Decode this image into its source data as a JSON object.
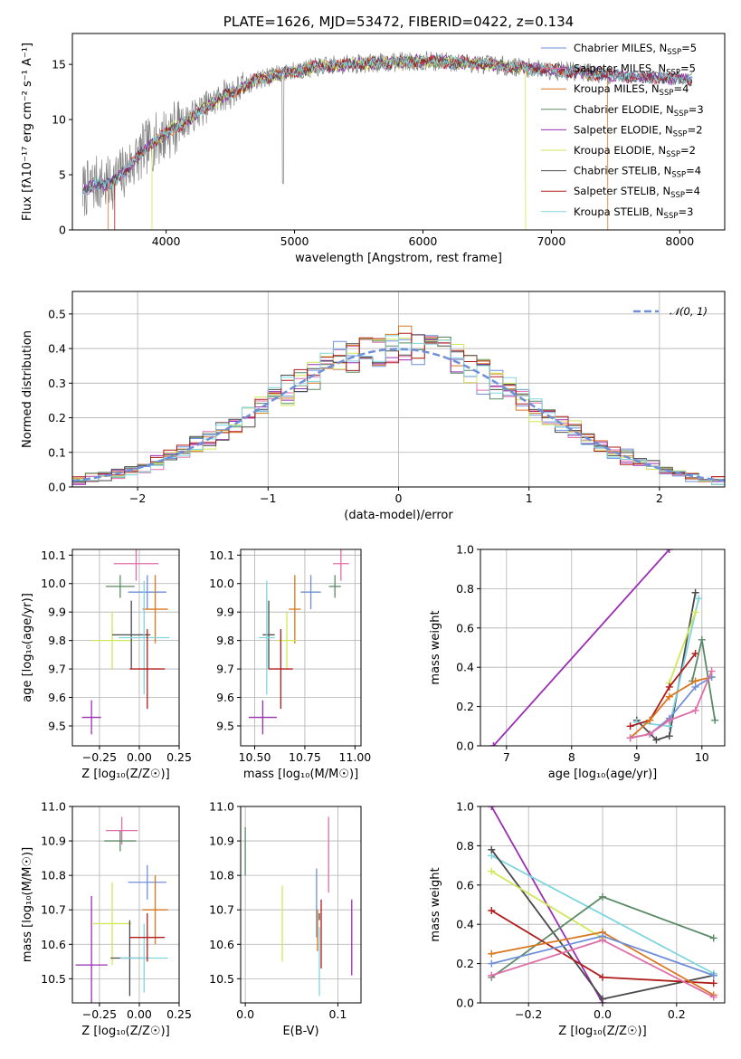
{
  "colors": {
    "Chabrier MILES": "#6f8fd8",
    "Salpeter MILES": "#e06ea8",
    "Kroupa MILES": "#d9771f",
    "Chabrier ELODIE": "#5b8a66",
    "Salpeter ELODIE": "#9a2fb3",
    "Kroupa ELODIE": "#cfe85a",
    "Chabrier STELIB": "#4a4a4a",
    "Salpeter STELIB": "#b01b1b",
    "Kroupa STELIB": "#7fd5de",
    "data": "#808080"
  },
  "chart_data": [
    {
      "id": "spectrum",
      "type": "line",
      "title": "PLATE=1626, MJD=53472, FIBERID=0422, z=0.134",
      "xlabel": "wavelength [Angstrom, rest frame]",
      "ylabel": "Flux [fλ10⁻¹⁷ erg cm⁻² s⁻¹ A⁻¹]",
      "xlim": [
        3270,
        8350
      ],
      "ylim": [
        0,
        17.8
      ],
      "xticks": [
        4000,
        5000,
        6000,
        7000,
        8000
      ],
      "yticks": [
        0,
        5,
        10,
        15
      ],
      "grid": false,
      "legend_position": "upper-right",
      "legend": [
        {
          "label": "Chabrier MILES, N",
          "sub": "SSP",
          "suffix": "=5"
        },
        {
          "label": "Salpeter MILES, N",
          "sub": "SSP",
          "suffix": "=5"
        },
        {
          "label": "Kroupa MILES, N",
          "sub": "SSP",
          "suffix": "=4"
        },
        {
          "label": "Chabrier ELODIE, N",
          "sub": "SSP",
          "suffix": "=3"
        },
        {
          "label": "Salpeter ELODIE, N",
          "sub": "SSP",
          "suffix": "=2"
        },
        {
          "label": "Kroupa ELODIE, N",
          "sub": "SSP",
          "suffix": "=2"
        },
        {
          "label": "Chabrier STELIB, N",
          "sub": "SSP",
          "suffix": "=4"
        },
        {
          "label": "Salpeter STELIB, N",
          "sub": "SSP",
          "suffix": "=4"
        },
        {
          "label": "Kroupa STELIB, N",
          "sub": "SSP",
          "suffix": "=3"
        }
      ],
      "continuum": {
        "x": [
          3350,
          3450,
          3550,
          3650,
          3750,
          3850,
          3950,
          4050,
          4150,
          4250,
          4350,
          4450,
          4550,
          4700,
          4850,
          5000,
          5200,
          5400,
          5600,
          5800,
          6000,
          6200,
          6400,
          6600,
          6800,
          7000,
          7200,
          7400,
          7600,
          7800,
          8000,
          8100
        ],
        "y": [
          3.5,
          4.2,
          4.1,
          5.0,
          6.2,
          7.5,
          8.3,
          9.2,
          9.8,
          10.7,
          11.4,
          12.2,
          12.6,
          13.6,
          14.0,
          14.4,
          14.8,
          15.0,
          15.1,
          15.2,
          15.3,
          15.2,
          15.1,
          14.9,
          14.7,
          14.5,
          14.3,
          14.1,
          13.9,
          13.8,
          13.7,
          13.6
        ]
      },
      "cutoffs": [
        {
          "series": "Kroupa MILES",
          "side": "low",
          "x": 3550
        },
        {
          "series": "Salpeter STELIB",
          "side": "low",
          "x": 3600
        },
        {
          "series": "Kroupa ELODIE",
          "side": "low",
          "x": 3890
        },
        {
          "series": "Kroupa ELODIE",
          "side": "high",
          "x": 6800
        },
        {
          "series": "Kroupa MILES",
          "side": "high",
          "x": 7440
        }
      ]
    },
    {
      "id": "residuals",
      "type": "histogram",
      "xlabel": "(data-model)/error",
      "ylabel": "Normed distribution",
      "xlim": [
        -2.5,
        2.5
      ],
      "ylim": [
        0,
        0.565
      ],
      "xticks": [
        -2,
        -1,
        0,
        1,
        2
      ],
      "yticks": [
        0.0,
        0.1,
        0.2,
        0.3,
        0.4,
        0.5
      ],
      "grid": true,
      "bin_width": 0.1,
      "reference": {
        "label": "𝒩(0, 1)",
        "mean": 0,
        "sigma": 1,
        "color": "#6f8fd8"
      },
      "legend_position": "upper-right"
    },
    {
      "id": "age-vs-Z",
      "type": "errorbar",
      "xlabel": "Z [log₁₀(Z/Z☉)]",
      "ylabel": "age  [log₁₀(age/yr)]",
      "xlim": [
        -0.42,
        0.25
      ],
      "ylim": [
        9.43,
        10.12
      ],
      "xticks": [
        -0.25,
        0.0,
        0.25
      ],
      "yticks": [
        9.5,
        9.6,
        9.7,
        9.8,
        9.9,
        10.0,
        10.1
      ],
      "grid": true,
      "points": [
        {
          "series": "Salpeter MILES",
          "x": -0.02,
          "xerr": 0.14,
          "y": 10.07,
          "yerr": 0.06
        },
        {
          "series": "Chabrier MILES",
          "x": 0.05,
          "xerr": 0.12,
          "y": 9.97,
          "yerr": 0.06
        },
        {
          "series": "Kroupa MILES",
          "x": 0.1,
          "xerr": 0.08,
          "y": 9.91,
          "yerr": 0.12
        },
        {
          "series": "Chabrier ELODIE",
          "x": -0.12,
          "xerr": 0.09,
          "y": 9.99,
          "yerr": 0.04
        },
        {
          "series": "Kroupa ELODIE",
          "x": -0.17,
          "xerr": 0.13,
          "y": 9.8,
          "yerr": 0.1
        },
        {
          "series": "Chabrier STELIB",
          "x": -0.05,
          "xerr": 0.12,
          "y": 9.82,
          "yerr": 0.12
        },
        {
          "series": "Kroupa STELIB",
          "x": 0.03,
          "xerr": 0.16,
          "y": 9.81,
          "yerr": 0.2
        },
        {
          "series": "Salpeter STELIB",
          "x": 0.05,
          "xerr": 0.11,
          "y": 9.7,
          "yerr": 0.14
        },
        {
          "series": "Salpeter ELODIE",
          "x": -0.3,
          "xerr": 0.06,
          "y": 9.53,
          "yerr": 0.06
        }
      ]
    },
    {
      "id": "age-vs-mass",
      "type": "errorbar",
      "xlabel": "mass [log₁₀(M/M☉)]",
      "ylabel": "",
      "xlim": [
        10.43,
        11.03
      ],
      "ylim": [
        9.43,
        10.12
      ],
      "xticks": [
        10.5,
        10.75,
        11.0
      ],
      "yticks": [
        9.5,
        9.6,
        9.7,
        9.8,
        9.9,
        10.0,
        10.1
      ],
      "grid": true,
      "points": [
        {
          "series": "Salpeter MILES",
          "x": 10.93,
          "xerr": 0.04,
          "y": 10.07,
          "yerr": 0.06
        },
        {
          "series": "Chabrier MILES",
          "x": 10.78,
          "xerr": 0.05,
          "y": 9.97,
          "yerr": 0.06
        },
        {
          "series": "Kroupa MILES",
          "x": 10.7,
          "xerr": 0.03,
          "y": 9.91,
          "yerr": 0.12
        },
        {
          "series": "Chabrier ELODIE",
          "x": 10.9,
          "xerr": 0.03,
          "y": 9.99,
          "yerr": 0.04
        },
        {
          "series": "Kroupa ELODIE",
          "x": 10.66,
          "xerr": 0.05,
          "y": 9.8,
          "yerr": 0.1
        },
        {
          "series": "Chabrier STELIB",
          "x": 10.57,
          "xerr": 0.03,
          "y": 9.82,
          "yerr": 0.12
        },
        {
          "series": "Kroupa STELIB",
          "x": 10.56,
          "xerr": 0.04,
          "y": 9.81,
          "yerr": 0.2
        },
        {
          "series": "Salpeter STELIB",
          "x": 10.63,
          "xerr": 0.06,
          "y": 9.7,
          "yerr": 0.14
        },
        {
          "series": "Salpeter ELODIE",
          "x": 10.54,
          "xerr": 0.07,
          "y": 9.53,
          "yerr": 0.06
        }
      ]
    },
    {
      "id": "mass-weight-vs-age",
      "type": "line",
      "xlabel": "age  [log₁₀(age/yr)]",
      "ylabel": "mass weight",
      "xlim": [
        6.6,
        10.35
      ],
      "ylim": [
        0,
        1.0
      ],
      "xticks": [
        7,
        8,
        9,
        10
      ],
      "yticks": [
        0.0,
        0.2,
        0.4,
        0.6,
        0.8,
        1.0
      ],
      "grid": true,
      "series": [
        {
          "name": "Salpeter ELODIE",
          "x": [
            6.8,
            9.5
          ],
          "y": [
            0.0,
            1.0
          ]
        },
        {
          "name": "Chabrier STELIB",
          "x": [
            9.0,
            9.3,
            9.5,
            9.9
          ],
          "y": [
            0.13,
            0.03,
            0.05,
            0.78
          ]
        },
        {
          "name": "Kroupa STELIB",
          "x": [
            9.0,
            9.5,
            9.95
          ],
          "y": [
            0.12,
            0.1,
            0.75
          ]
        },
        {
          "name": "Kroupa ELODIE",
          "x": [
            9.5,
            9.9
          ],
          "y": [
            0.32,
            0.68
          ]
        },
        {
          "name": "Salpeter STELIB",
          "x": [
            8.9,
            9.2,
            9.5,
            9.9
          ],
          "y": [
            0.1,
            0.13,
            0.3,
            0.47
          ]
        },
        {
          "name": "Chabrier ELODIE",
          "x": [
            9.85,
            10.0,
            10.2
          ],
          "y": [
            0.33,
            0.54,
            0.13
          ]
        },
        {
          "name": "Kroupa MILES",
          "x": [
            8.9,
            9.2,
            9.5,
            9.9,
            10.15
          ],
          "y": [
            0.04,
            0.13,
            0.25,
            0.33,
            0.35
          ]
        },
        {
          "name": "Chabrier MILES",
          "x": [
            8.9,
            9.2,
            9.5,
            9.9,
            10.15
          ],
          "y": [
            0.04,
            0.06,
            0.14,
            0.3,
            0.35
          ]
        },
        {
          "name": "Salpeter MILES",
          "x": [
            8.9,
            9.2,
            9.5,
            9.9,
            10.15
          ],
          "y": [
            0.04,
            0.06,
            0.13,
            0.18,
            0.38
          ]
        }
      ]
    },
    {
      "id": "mass-vs-Z",
      "type": "errorbar",
      "xlabel": "Z [log₁₀(Z/Z☉)]",
      "ylabel": "mass [log₁₀(M/M☉)]",
      "xlim": [
        -0.42,
        0.25
      ],
      "ylim": [
        10.43,
        11.0
      ],
      "xticks": [
        -0.25,
        0.0,
        0.25
      ],
      "yticks": [
        10.5,
        10.6,
        10.7,
        10.8,
        10.9,
        11.0
      ],
      "grid": true,
      "points": [
        {
          "series": "Salpeter MILES",
          "x": -0.11,
          "xerr": 0.1,
          "y": 10.93,
          "yerr": 0.04
        },
        {
          "series": "Chabrier MILES",
          "x": 0.05,
          "xerr": 0.12,
          "y": 10.78,
          "yerr": 0.05
        },
        {
          "series": "Kroupa MILES",
          "x": 0.1,
          "xerr": 0.08,
          "y": 10.7,
          "yerr": 0.1
        },
        {
          "series": "Chabrier ELODIE",
          "x": -0.12,
          "xerr": 0.1,
          "y": 10.9,
          "yerr": 0.03
        },
        {
          "series": "Kroupa ELODIE",
          "x": -0.17,
          "xerr": 0.12,
          "y": 10.66,
          "yerr": 0.12
        },
        {
          "series": "Chabrier STELIB",
          "x": -0.06,
          "xerr": 0.12,
          "y": 10.56,
          "yerr": 0.11
        },
        {
          "series": "Kroupa STELIB",
          "x": 0.03,
          "xerr": 0.15,
          "y": 10.56,
          "yerr": 0.1
        },
        {
          "series": "Salpeter STELIB",
          "x": 0.05,
          "xerr": 0.11,
          "y": 10.62,
          "yerr": 0.07
        },
        {
          "series": "Salpeter ELODIE",
          "x": -0.3,
          "xerr": 0.1,
          "y": 10.54,
          "yerr": 0.2
        }
      ]
    },
    {
      "id": "mass-vs-EBV",
      "type": "errorbar",
      "xlabel": "E(B-V)",
      "ylabel": "",
      "xlim": [
        -0.005,
        0.125
      ],
      "ylim": [
        10.43,
        11.0
      ],
      "xticks": [
        0.0,
        0.1
      ],
      "yticks": [
        10.5,
        10.6,
        10.7,
        10.8,
        10.9,
        11.0
      ],
      "grid": true,
      "points": [
        {
          "series": "Chabrier ELODIE",
          "x": 0.0,
          "xerr": 0,
          "y": 10.87,
          "yerr": 0.07
        },
        {
          "series": "Kroupa ELODIE",
          "x": 0.04,
          "xerr": 0,
          "y": 10.66,
          "yerr": 0.11
        },
        {
          "series": "Chabrier MILES",
          "x": 0.077,
          "xerr": 0,
          "y": 10.72,
          "yerr": 0.1
        },
        {
          "series": "Kroupa STELIB",
          "x": 0.08,
          "xerr": 0,
          "y": 10.55,
          "yerr": 0.1
        },
        {
          "series": "Kroupa MILES",
          "x": 0.078,
          "xerr": 0,
          "y": 10.64,
          "yerr": 0.06
        },
        {
          "series": "Salpeter STELIB",
          "x": 0.082,
          "xerr": 0,
          "y": 10.63,
          "yerr": 0.1
        },
        {
          "series": "Salpeter MILES",
          "x": 0.09,
          "xerr": 0,
          "y": 10.86,
          "yerr": 0.11
        },
        {
          "series": "Salpeter ELODIE",
          "x": 0.115,
          "xerr": 0,
          "y": 10.62,
          "yerr": 0.11
        },
        {
          "series": "Chabrier STELIB",
          "x": 0.08,
          "xerr": 0,
          "y": 10.68,
          "yerr": 0.01
        }
      ]
    },
    {
      "id": "mass-weight-vs-Z",
      "type": "line",
      "xlabel": "Z [log₁₀(Z/Z☉)]",
      "ylabel": "mass weight",
      "xlim": [
        -0.33,
        0.33
      ],
      "ylim": [
        0,
        1.0
      ],
      "xticks": [
        -0.2,
        0.0,
        0.2
      ],
      "yticks": [
        0.0,
        0.2,
        0.4,
        0.6,
        0.8,
        1.0
      ],
      "grid": true,
      "series": [
        {
          "name": "Salpeter ELODIE",
          "x": [
            -0.3,
            0.0
          ],
          "y": [
            1.0,
            0.0
          ]
        },
        {
          "name": "Kroupa STELIB",
          "x": [
            -0.3,
            0.3
          ],
          "y": [
            0.75,
            0.15
          ]
        },
        {
          "name": "Chabrier STELIB",
          "x": [
            -0.3,
            0.0,
            0.3
          ],
          "y": [
            0.78,
            0.02,
            0.14
          ]
        },
        {
          "name": "Kroupa ELODIE",
          "x": [
            -0.3,
            0.0
          ],
          "y": [
            0.67,
            0.33
          ]
        },
        {
          "name": "Chabrier ELODIE",
          "x": [
            -0.3,
            0.0,
            0.3
          ],
          "y": [
            0.13,
            0.54,
            0.33
          ]
        },
        {
          "name": "Salpeter STELIB",
          "x": [
            -0.3,
            0.0,
            0.3
          ],
          "y": [
            0.47,
            0.13,
            0.1
          ]
        },
        {
          "name": "Kroupa MILES",
          "x": [
            -0.3,
            0.0,
            0.3
          ],
          "y": [
            0.25,
            0.36,
            0.04
          ]
        },
        {
          "name": "Chabrier MILES",
          "x": [
            -0.3,
            0.0,
            0.3
          ],
          "y": [
            0.2,
            0.34,
            0.14
          ]
        },
        {
          "name": "Salpeter MILES",
          "x": [
            -0.3,
            0.0,
            0.3
          ],
          "y": [
            0.14,
            0.32,
            0.03
          ]
        }
      ]
    }
  ]
}
